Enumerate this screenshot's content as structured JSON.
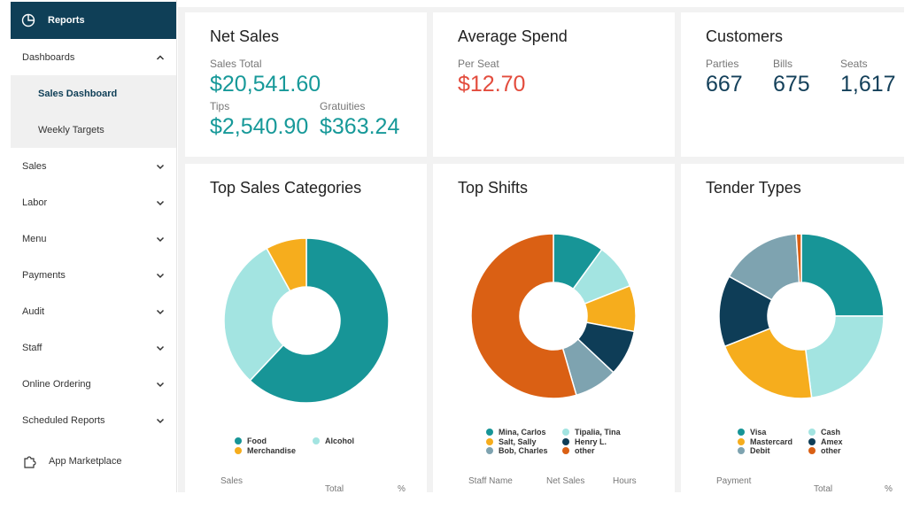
{
  "sidebar": {
    "header": "Reports",
    "items": [
      {
        "label": "Dashboards",
        "chevron": "up"
      },
      {
        "label": "Sales",
        "chevron": "down"
      },
      {
        "label": "Labor",
        "chevron": "down"
      },
      {
        "label": "Menu",
        "chevron": "down"
      },
      {
        "label": "Payments",
        "chevron": "down"
      },
      {
        "label": "Audit",
        "chevron": "down"
      },
      {
        "label": "Staff",
        "chevron": "down"
      },
      {
        "label": "Online Ordering",
        "chevron": "down"
      },
      {
        "label": "Scheduled Reports",
        "chevron": "down"
      }
    ],
    "subitems": [
      {
        "label": "Sales Dashboard",
        "active": true
      },
      {
        "label": "Weekly Targets",
        "active": false
      }
    ],
    "marketplace": "App Marketplace"
  },
  "net_sales": {
    "title": "Net Sales",
    "sales_total_label": "Sales Total",
    "sales_total": "$20,541.60",
    "tips_label": "Tips",
    "tips": "$2,540.90",
    "gratuities_label": "Gratuities",
    "gratuities": "$363.24"
  },
  "avg_spend": {
    "title": "Average Spend",
    "per_seat_label": "Per Seat",
    "per_seat": "$12.70"
  },
  "customers": {
    "title": "Customers",
    "parties_label": "Parties",
    "parties": "667",
    "bills_label": "Bills",
    "bills": "675",
    "seats_label": "Seats",
    "seats": "1,617"
  },
  "colors": {
    "teal": "#179597",
    "light_teal": "#a3e4e1",
    "gold": "#f6ad1d",
    "navy": "#0e3d57",
    "gray_blue": "#7ea3b0",
    "orange": "#da6014",
    "header": "#0f3f57"
  },
  "chart_data": [
    {
      "type": "pie",
      "title": "Top Sales Categories",
      "labels": [
        "Food",
        "Alcohol",
        "Merchandise"
      ],
      "values": [
        62,
        30,
        8
      ],
      "colors": [
        "#179597",
        "#a3e4e1",
        "#f6ad1d"
      ],
      "start_angle": 0,
      "columns": [
        "Sales",
        "Total",
        "%"
      ]
    },
    {
      "type": "pie",
      "title": "Top Shifts",
      "labels": [
        "Mina, Carlos",
        "Tipalia, Tina",
        "Salt, Sally",
        "Henry L.",
        "Bob, Charles",
        "other"
      ],
      "values": [
        10,
        9,
        9,
        9,
        8.5,
        54.5
      ],
      "colors": [
        "#179597",
        "#a3e4e1",
        "#f6ad1d",
        "#0e3d57",
        "#7ea3b0",
        "#da6014"
      ],
      "start_angle": 0,
      "columns": [
        "Staff Name",
        "Net Sales",
        "Hours"
      ]
    },
    {
      "type": "pie",
      "title": "Tender Types",
      "labels": [
        "Visa",
        "Cash",
        "Mastercard",
        "Amex",
        "Debit",
        "other"
      ],
      "values": [
        25,
        23,
        21,
        14,
        16,
        1
      ],
      "colors": [
        "#179597",
        "#a3e4e1",
        "#f6ad1d",
        "#0e3d57",
        "#7ea3b0",
        "#da6014"
      ],
      "start_angle": 0,
      "columns": [
        "Payment",
        "Total",
        "%"
      ]
    }
  ]
}
